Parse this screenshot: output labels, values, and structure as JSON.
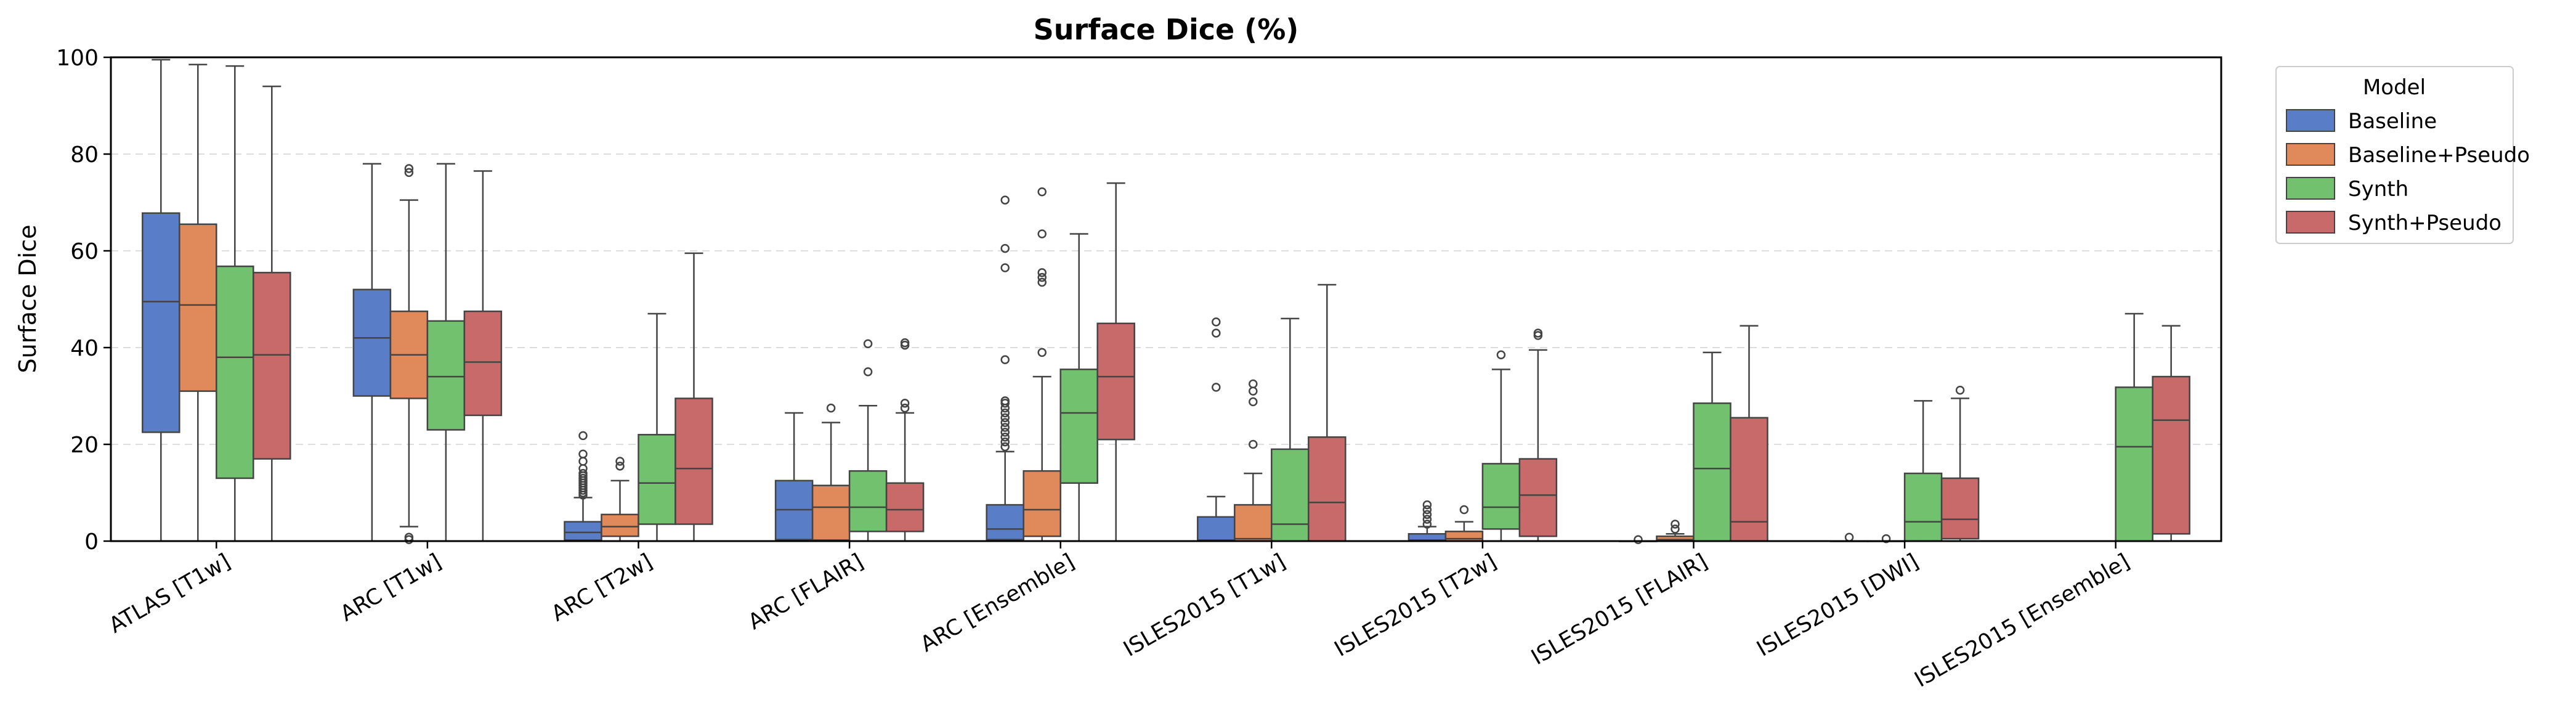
{
  "chart_data": {
    "type": "box",
    "title": "Surface Dice (%)",
    "xlabel": "",
    "ylabel": "Surface Dice",
    "ylim": [
      0,
      100
    ],
    "yticks": [
      0,
      20,
      40,
      60,
      80,
      100
    ],
    "grid": "horizontal dashed",
    "legend": {
      "title": "Model",
      "placement": "outside-right-top"
    },
    "categories": [
      "ATLAS [T1w]",
      "ARC [T1w]",
      "ARC [T2w]",
      "ARC [FLAIR]",
      "ARC [Ensemble]",
      "ISLES2015 [T1w]",
      "ISLES2015 [T2w]",
      "ISLES2015 [FLAIR]",
      "ISLES2015 [DWI]",
      "ISLES2015 [Ensemble]"
    ],
    "series": [
      {
        "name": "Baseline",
        "color": "#5a7dc8",
        "boxes": [
          {
            "whislo": 0,
            "q1": 22.5,
            "med": 49.5,
            "q3": 67.8,
            "whishi": 99.5,
            "fliers": []
          },
          {
            "whislo": 0,
            "q1": 30.0,
            "med": 42.0,
            "q3": 52.0,
            "whishi": 78.0,
            "fliers": []
          },
          {
            "whislo": 0,
            "q1": 0.2,
            "med": 1.8,
            "q3": 4.0,
            "whishi": 9.0,
            "fliers": [
              9.5,
              10.0,
              10.5,
              11.0,
              11.5,
              12.0,
              12.5,
              13.0,
              13.5,
              14.0,
              15.0,
              16.5,
              18.0,
              21.8
            ]
          },
          {
            "whislo": 0,
            "q1": 0.3,
            "med": 6.5,
            "q3": 12.5,
            "whishi": 26.5,
            "fliers": []
          },
          {
            "whislo": 0,
            "q1": 0.3,
            "med": 2.5,
            "q3": 7.5,
            "whishi": 18.5,
            "fliers": [
              19.5,
              20.5,
              21.5,
              22.5,
              23.5,
              24.5,
              25.5,
              26.5,
              27.5,
              28.5,
              29.0,
              37.5,
              56.5,
              60.5,
              70.5
            ]
          },
          {
            "whislo": 0,
            "q1": 0,
            "med": 0.2,
            "q3": 5.0,
            "whishi": 9.2,
            "fliers": [
              31.8,
              43.0,
              45.3
            ]
          },
          {
            "whislo": 0,
            "q1": 0,
            "med": 0.2,
            "q3": 1.5,
            "whishi": 3.0,
            "fliers": [
              3.5,
              4.5,
              5.5,
              6.5,
              7.5
            ]
          },
          {
            "whislo": 0,
            "q1": 0,
            "med": 0,
            "q3": 0,
            "whishi": 0,
            "fliers": [
              0.3
            ]
          },
          {
            "whislo": 0,
            "q1": 0,
            "med": 0,
            "q3": 0,
            "whishi": 0,
            "fliers": [
              0.8
            ]
          },
          null
        ]
      },
      {
        "name": "Baseline+Pseudo",
        "color": "#e0895a",
        "boxes": [
          {
            "whislo": 0,
            "q1": 31.0,
            "med": 48.8,
            "q3": 65.5,
            "whishi": 98.5,
            "fliers": []
          },
          {
            "whislo": 3.0,
            "q1": 29.5,
            "med": 38.5,
            "q3": 47.5,
            "whishi": 70.5,
            "fliers": [
              0.3,
              0.8,
              76.2,
              77.0
            ]
          },
          {
            "whislo": 0,
            "q1": 1.0,
            "med": 3.0,
            "q3": 5.5,
            "whishi": 12.5,
            "fliers": [
              15.5,
              16.5
            ]
          },
          {
            "whislo": 0,
            "q1": 0.2,
            "med": 7.0,
            "q3": 11.5,
            "whishi": 24.5,
            "fliers": [
              27.5
            ]
          },
          {
            "whislo": 0,
            "q1": 1.0,
            "med": 6.5,
            "q3": 14.5,
            "whishi": 34.0,
            "fliers": [
              39.0,
              53.5,
              54.5,
              55.5,
              63.5,
              72.2
            ]
          },
          {
            "whislo": 0,
            "q1": 0,
            "med": 0.5,
            "q3": 7.5,
            "whishi": 14.0,
            "fliers": [
              20.0,
              28.8,
              31.0,
              32.5
            ]
          },
          {
            "whislo": 0,
            "q1": 0,
            "med": 0.5,
            "q3": 2.0,
            "whishi": 4.0,
            "fliers": [
              6.5
            ]
          },
          {
            "whislo": 0,
            "q1": 0,
            "med": 0.3,
            "q3": 1.0,
            "whishi": 1.5,
            "fliers": [
              2.5,
              3.5
            ]
          },
          {
            "whislo": 0,
            "q1": 0,
            "med": 0,
            "q3": 0,
            "whishi": 0,
            "fliers": [
              0.5
            ]
          },
          null
        ]
      },
      {
        "name": "Synth",
        "color": "#72c16e",
        "boxes": [
          {
            "whislo": 0,
            "q1": 13.0,
            "med": 38.0,
            "q3": 56.8,
            "whishi": 98.2,
            "fliers": []
          },
          {
            "whislo": 0,
            "q1": 23.0,
            "med": 34.0,
            "q3": 45.5,
            "whishi": 78.0,
            "fliers": []
          },
          {
            "whislo": 0,
            "q1": 3.5,
            "med": 12.0,
            "q3": 22.0,
            "whishi": 47.0,
            "fliers": []
          },
          {
            "whislo": 0,
            "q1": 2.0,
            "med": 7.0,
            "q3": 14.5,
            "whishi": 28.0,
            "fliers": [
              35.0,
              40.8
            ]
          },
          {
            "whislo": 0,
            "q1": 12.0,
            "med": 26.5,
            "q3": 35.5,
            "whishi": 63.5,
            "fliers": []
          },
          {
            "whislo": 0,
            "q1": 0,
            "med": 3.5,
            "q3": 19.0,
            "whishi": 46.0,
            "fliers": []
          },
          {
            "whislo": 0,
            "q1": 2.5,
            "med": 7.0,
            "q3": 16.0,
            "whishi": 35.5,
            "fliers": [
              38.5
            ]
          },
          {
            "whislo": 0,
            "q1": 0,
            "med": 15.0,
            "q3": 28.5,
            "whishi": 39.0,
            "fliers": []
          },
          {
            "whislo": 0,
            "q1": 0,
            "med": 4.0,
            "q3": 14.0,
            "whishi": 29.0,
            "fliers": []
          },
          {
            "whislo": 0,
            "q1": 0,
            "med": 19.5,
            "q3": 31.8,
            "whishi": 47.0,
            "fliers": []
          }
        ]
      },
      {
        "name": "Synth+Pseudo",
        "color": "#c86a6a",
        "boxes": [
          {
            "whislo": 0,
            "q1": 17.0,
            "med": 38.5,
            "q3": 55.5,
            "whishi": 94.0,
            "fliers": []
          },
          {
            "whislo": 0,
            "q1": 26.0,
            "med": 37.0,
            "q3": 47.5,
            "whishi": 76.5,
            "fliers": []
          },
          {
            "whislo": 0,
            "q1": 3.5,
            "med": 15.0,
            "q3": 29.5,
            "whishi": 59.5,
            "fliers": []
          },
          {
            "whislo": 0,
            "q1": 2.0,
            "med": 6.5,
            "q3": 12.0,
            "whishi": 26.5,
            "fliers": [
              27.5,
              28.5,
              40.5,
              41.0
            ]
          },
          {
            "whislo": 0,
            "q1": 21.0,
            "med": 34.0,
            "q3": 45.0,
            "whishi": 74.0,
            "fliers": []
          },
          {
            "whislo": 0,
            "q1": 0,
            "med": 8.0,
            "q3": 21.5,
            "whishi": 53.0,
            "fliers": []
          },
          {
            "whislo": 0,
            "q1": 1.0,
            "med": 9.5,
            "q3": 17.0,
            "whishi": 39.5,
            "fliers": [
              42.5,
              43.0
            ]
          },
          {
            "whislo": 0,
            "q1": 0,
            "med": 4.0,
            "q3": 25.5,
            "whishi": 44.5,
            "fliers": []
          },
          {
            "whislo": 0,
            "q1": 0.5,
            "med": 4.5,
            "q3": 13.0,
            "whishi": 29.5,
            "fliers": [
              31.2
            ]
          },
          {
            "whislo": 0,
            "q1": 1.5,
            "med": 25.0,
            "q3": 34.0,
            "whishi": 44.5,
            "fliers": []
          }
        ]
      }
    ]
  }
}
